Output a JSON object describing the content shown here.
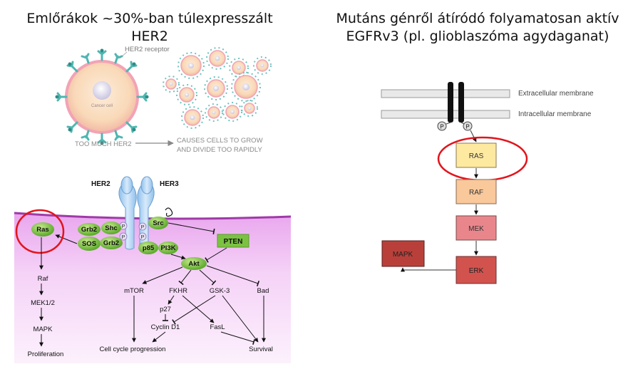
{
  "titles": {
    "left": "Emlőrákok ~30%-ban túlexpresszált HER2",
    "right_line1": "Mutáns génről átíródó folyamatosan aktív",
    "right_line2": "EGFRv3 (pl. glioblaszóma agydaganat)"
  },
  "cell_panel": {
    "receptor_label": "HER2 receptor",
    "cell_label": "Cancer cell",
    "cause_label": "TOO MUCH HER2",
    "effect_line1": "CAUSES CELLS TO GROW",
    "effect_line2": "AND DIVIDE TOO RAPIDLY"
  },
  "pathway_left": {
    "her2": "HER2",
    "her3": "HER3",
    "grb2_top": "Grb2",
    "shc": "Shc",
    "sos": "SOS",
    "grb2_bottom": "Grb2",
    "src": "Src",
    "p85": "p85",
    "pi3k": "PI3K",
    "pten": "PTEN",
    "akt": "Akt",
    "ras": "Ras",
    "raf": "Raf",
    "mek": "MEK1/2",
    "mapk": "MAPK",
    "proliferation": "Proliferation",
    "mtor": "mTOR",
    "fkhr": "FKHR",
    "gsk3": "GSK-3",
    "bad": "Bad",
    "p27": "p27",
    "cyclin": "Cyclin D1",
    "fasl": "FasL",
    "cell_cycle": "Cell cycle progression",
    "survival": "Survival",
    "phospho": "P"
  },
  "pathway_right": {
    "extracellular": "Extracellular membrane",
    "intracellular": "Intracellular membrane",
    "phospho": "P",
    "ras": "RAS",
    "raf": "RAF",
    "mek": "MEK",
    "erk": "ERK",
    "mapk": "MAPK"
  },
  "colors": {
    "highlight_circle": "#e2141c",
    "cell_pink": "#f4a9b4",
    "receptor_teal": "#4fb6b0",
    "node_green": "#7cc242",
    "membrane_purple": "#a03aa8",
    "ras_box": "#fde9a0",
    "raf_box": "#f9c89b",
    "mek_box": "#e9868c",
    "erk_box": "#d2534e",
    "mapk_box": "#b9403a"
  }
}
